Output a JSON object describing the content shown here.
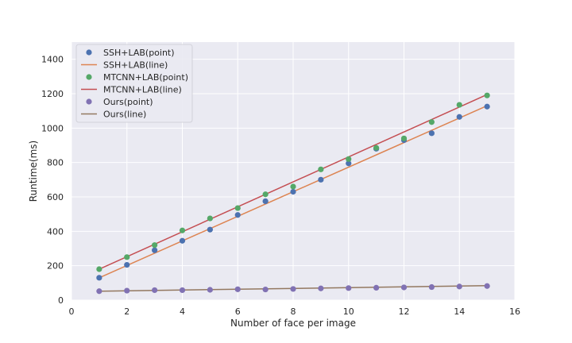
{
  "chart_data": {
    "type": "scatter",
    "xlabel": "Number of face per image",
    "ylabel": "Runtime(ms)",
    "xlim": [
      0,
      16
    ],
    "ylim": [
      0,
      1500
    ],
    "xticks": [
      0,
      2,
      4,
      6,
      8,
      10,
      12,
      14,
      16
    ],
    "yticks": [
      0,
      200,
      400,
      600,
      800,
      1000,
      1200,
      1400
    ],
    "grid": true,
    "legend_position": "top-left",
    "x": [
      1,
      2,
      3,
      4,
      5,
      6,
      7,
      8,
      9,
      10,
      11,
      12,
      13,
      14,
      15
    ],
    "series": [
      {
        "name": "SSH+LAB(point)",
        "kind": "point",
        "color": "#4c72b0",
        "values": [
          130,
          205,
          290,
          345,
          410,
          495,
          575,
          630,
          700,
          795,
          880,
          930,
          970,
          1065,
          1125
        ]
      },
      {
        "name": "SSH+LAB(line)",
        "kind": "line",
        "color": "#dd8452",
        "x": [
          1,
          15
        ],
        "values": [
          130,
          1130
        ]
      },
      {
        "name": "MTCNN+LAB(point)",
        "kind": "point",
        "color": "#55a868",
        "values": [
          180,
          250,
          320,
          405,
          475,
          535,
          615,
          660,
          760,
          820,
          885,
          940,
          1035,
          1135,
          1190
        ]
      },
      {
        "name": "MTCNN+LAB(line)",
        "kind": "line",
        "color": "#c44e52",
        "x": [
          1,
          15
        ],
        "values": [
          180,
          1195
        ]
      },
      {
        "name": "Ours(point)",
        "kind": "point",
        "color": "#8172b3",
        "values": [
          52,
          55,
          58,
          58,
          60,
          63,
          62,
          65,
          68,
          70,
          72,
          74,
          76,
          79,
          82
        ]
      },
      {
        "name": "Ours(line)",
        "kind": "line",
        "color": "#937860",
        "x": [
          1,
          15
        ],
        "values": [
          52,
          84
        ]
      }
    ]
  }
}
